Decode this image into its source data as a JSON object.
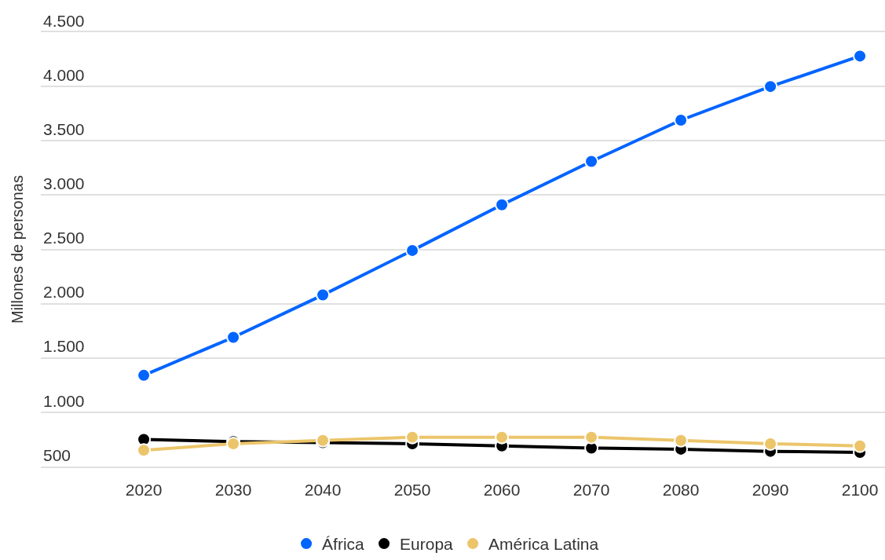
{
  "chart_data": {
    "type": "line",
    "ylabel": "Millones de personas",
    "categories": [
      "2020",
      "2030",
      "2040",
      "2050",
      "2060",
      "2070",
      "2080",
      "2090",
      "2100"
    ],
    "series": [
      {
        "name": "África",
        "color": "#0064ff",
        "values": [
          1340,
          1690,
          2080,
          2490,
          2910,
          3310,
          3690,
          4000,
          4280
        ]
      },
      {
        "name": "Europa",
        "color": "#000000",
        "values": [
          750,
          730,
          720,
          710,
          690,
          670,
          660,
          640,
          630
        ]
      },
      {
        "name": "América Latina",
        "color": "#ecc56b",
        "values": [
          650,
          710,
          740,
          770,
          770,
          770,
          740,
          710,
          690
        ]
      }
    ],
    "ylim": [
      500,
      4500
    ],
    "yticks": [
      500,
      {
        "value": 1000,
        "label": "1.000"
      },
      {
        "value": 1500,
        "label": "1.500"
      },
      {
        "value": 2000,
        "label": "2.000"
      },
      {
        "value": 2500,
        "label": "2.500"
      },
      {
        "value": 3000,
        "label": "3.000"
      },
      {
        "value": 3500,
        "label": "3.500"
      },
      {
        "value": 4000,
        "label": "4.000"
      },
      {
        "value": 4500,
        "label": "4.500"
      }
    ],
    "grid": "y",
    "legend": "bottom",
    "marker": "circle",
    "line_style": "solid"
  }
}
